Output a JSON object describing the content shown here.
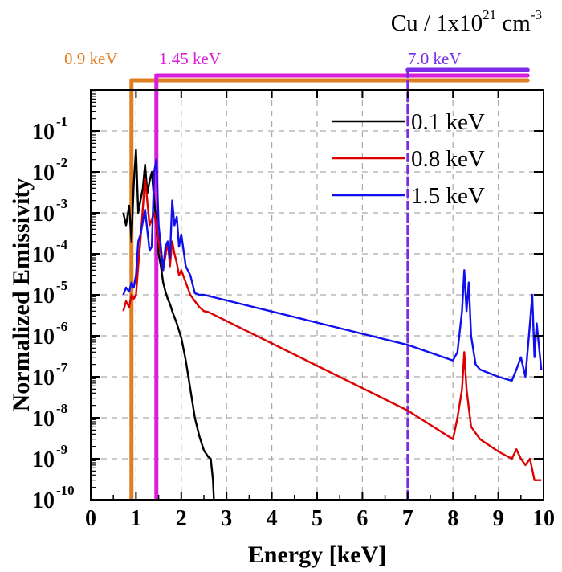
{
  "chart_data": {
    "type": "line",
    "title": "Cu / 1x10^21 cm^-3",
    "title_parts": {
      "main": "Cu / 1x10",
      "sup1": "21",
      "mid": " cm",
      "sup2": "-3"
    },
    "xlabel": "Energy [keV]",
    "ylabel": "Normalized Emissivity",
    "xlim": [
      0,
      10
    ],
    "ylog": true,
    "ylim": [
      1e-10,
      1
    ],
    "grid": true,
    "legend_position": "top-right",
    "x_ticks": [
      0,
      1,
      2,
      3,
      4,
      5,
      6,
      7,
      8,
      9,
      10
    ],
    "x_tick_labels": [
      "0",
      "1",
      "2",
      "3",
      "4",
      "5",
      "6",
      "7",
      "8",
      "9",
      "10"
    ],
    "y_ticks": [
      {
        "base": "10",
        "exp": "-10",
        "value": 1e-10
      },
      {
        "base": "10",
        "exp": "-9",
        "value": 1e-09
      },
      {
        "base": "10",
        "exp": "-8",
        "value": 1e-08
      },
      {
        "base": "10",
        "exp": "-7",
        "value": 1e-07
      },
      {
        "base": "10",
        "exp": "-6",
        "value": 1e-06
      },
      {
        "base": "10",
        "exp": "-5",
        "value": 1e-05
      },
      {
        "base": "10",
        "exp": "-4",
        "value": 0.0001
      },
      {
        "base": "10",
        "exp": "-3",
        "value": 0.001
      },
      {
        "base": "10",
        "exp": "-2",
        "value": 0.01
      },
      {
        "base": "10",
        "exp": "-1",
        "value": 0.1
      }
    ],
    "vertical_markers": [
      {
        "x": 0.9,
        "label": "0.9 keV",
        "color": "#E07F22",
        "bar_from": 0.9,
        "bar_to": 9.65
      },
      {
        "x": 1.45,
        "label": "1.45 keV",
        "color": "#D91ED9",
        "bar_from": 1.45,
        "bar_to": 9.65
      },
      {
        "x": 7.0,
        "label": "7.0 keV",
        "color": "#7A2BE6",
        "bar_from": 7.0,
        "bar_to": 9.65
      }
    ],
    "series": [
      {
        "name": "0.1 keV",
        "color": "#000000",
        "x": [
          0.72,
          0.78,
          0.85,
          0.9,
          0.95,
          1.0,
          1.05,
          1.1,
          1.15,
          1.2,
          1.25,
          1.3,
          1.35,
          1.4,
          1.45,
          1.5,
          1.55,
          1.6,
          1.65,
          1.7,
          1.75,
          1.8,
          1.9,
          2.0,
          2.1,
          2.2,
          2.3,
          2.4,
          2.5,
          2.6,
          2.65,
          2.7,
          2.72
        ],
        "y": [
          0.001,
          0.0005,
          0.0015,
          0.0002,
          0.005,
          0.035,
          0.001,
          0.002,
          0.004,
          0.015,
          0.003,
          0.006,
          0.01,
          0.002,
          0.0005,
          0.0001,
          5e-05,
          2e-05,
          1.2e-05,
          8e-06,
          6e-06,
          4e-06,
          2e-06,
          9e-07,
          2.5e-07,
          5e-08,
          1e-08,
          3.5e-09,
          1.6e-09,
          1.1e-09,
          1e-09,
          3e-10,
          1e-10
        ]
      },
      {
        "name": "0.8 keV",
        "color": "#DD0000",
        "x": [
          0.72,
          0.78,
          0.85,
          0.9,
          0.95,
          1.0,
          1.05,
          1.1,
          1.2,
          1.3,
          1.35,
          1.4,
          1.45,
          1.5,
          1.55,
          1.6,
          1.7,
          1.75,
          1.8,
          1.85,
          1.9,
          1.95,
          2.0,
          2.1,
          2.2,
          2.3,
          2.4,
          2.5,
          2.6,
          7.0,
          8.0,
          8.1,
          8.2,
          8.25,
          8.3,
          8.4,
          8.6,
          9.0,
          9.3,
          9.4,
          9.5,
          9.6,
          9.7,
          9.8,
          9.95
        ],
        "y": [
          4e-06,
          7e-06,
          5e-06,
          1e-05,
          8e-06,
          1e-05,
          5e-05,
          0.00022,
          0.007,
          0.0005,
          0.0007,
          0.001,
          0.0005,
          0.0002,
          0.0001,
          4e-05,
          0.0002,
          5e-05,
          0.0002,
          0.0001,
          6e-05,
          3e-05,
          4e-05,
          2e-05,
          1e-05,
          7e-06,
          5e-06,
          4e-06,
          3.8e-06,
          1.5e-08,
          3e-09,
          1e-08,
          5e-08,
          4e-07,
          5e-08,
          6e-09,
          3e-09,
          1.5e-09,
          1e-09,
          1.7e-09,
          1e-09,
          7e-10,
          1e-09,
          3e-10,
          3e-10
        ]
      },
      {
        "name": "1.5 keV",
        "color": "#1010EE",
        "x": [
          0.72,
          0.78,
          0.85,
          0.9,
          0.95,
          1.0,
          1.05,
          1.1,
          1.2,
          1.3,
          1.35,
          1.4,
          1.45,
          1.5,
          1.55,
          1.6,
          1.65,
          1.7,
          1.75,
          1.8,
          1.85,
          1.9,
          1.95,
          2.0,
          2.1,
          2.2,
          2.3,
          2.4,
          2.5,
          7.0,
          8.0,
          8.1,
          8.2,
          8.25,
          8.3,
          8.35,
          8.4,
          8.5,
          8.6,
          9.0,
          9.3,
          9.4,
          9.5,
          9.6,
          9.7,
          9.75,
          9.8,
          9.85,
          9.95
        ],
        "y": [
          1e-05,
          1.5e-05,
          1.2e-05,
          2e-05,
          1.5e-05,
          3e-05,
          0.0002,
          0.0003,
          0.0012,
          0.00012,
          0.00015,
          0.01,
          0.02,
          0.0005,
          0.00015,
          4e-05,
          0.00015,
          0.0002,
          8e-05,
          0.002,
          0.0005,
          0.0008,
          0.00015,
          0.0003,
          5e-05,
          3e-05,
          1.1e-05,
          1e-05,
          1e-05,
          6e-07,
          2.5e-07,
          4e-07,
          4e-06,
          4e-05,
          4e-06,
          2e-05,
          1e-06,
          2e-07,
          1.5e-07,
          1e-07,
          8e-08,
          1.5e-07,
          3e-07,
          1e-07,
          2e-06,
          1e-05,
          3e-07,
          2e-06,
          1.5e-07
        ]
      }
    ]
  }
}
